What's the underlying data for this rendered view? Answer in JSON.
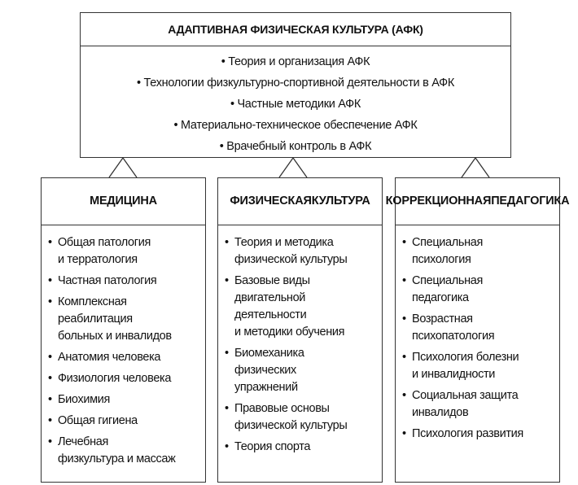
{
  "top": {
    "title": "АДАПТИВНАЯ ФИЗИЧЕСКАЯ КУЛЬТУРА (АФК)",
    "items": [
      "• Теория и организация АФК",
      "• Технологии физкультурно-спортивной деятельности в АФК",
      "• Частные методики АФК",
      "• Материально-техническое обеспечение АФК",
      "• Врачебный контроль в АФК"
    ]
  },
  "boxes": [
    {
      "title": [
        "МЕДИЦИНА"
      ],
      "items": [
        [
          "Общая патология",
          "и терратология"
        ],
        [
          "Частная патология"
        ],
        [
          "Комплексная",
          "реабилитация",
          "больных и инвалидов"
        ],
        [
          "Анатомия человека"
        ],
        [
          "Физиология человека"
        ],
        [
          "Биохимия"
        ],
        [
          "Общая гигиена"
        ],
        [
          "Лечебная",
          "физкультура и массаж"
        ]
      ]
    },
    {
      "title": [
        "ФИЗИЧЕСКАЯ",
        "КУЛЬТУРА"
      ],
      "items": [
        [
          "Теория и методика",
          "физической культуры"
        ],
        [
          "Базовые виды",
          "двигательной",
          "деятельности",
          "и методики обучения"
        ],
        [
          "Биомеханика",
          "физических",
          "упражнений"
        ],
        [
          "Правовые основы",
          "физической культуры"
        ],
        [
          "Теория спорта"
        ]
      ]
    },
    {
      "title": [
        "КОРРЕКЦИОННАЯ",
        "ПЕДАГОГИКА"
      ],
      "items": [
        [
          "Специальная",
          "психология"
        ],
        [
          "Специальная",
          "педагогика"
        ],
        [
          "Возрастная",
          "психопатология"
        ],
        [
          "Психология болезни",
          "и инвалидности"
        ],
        [
          "Социальная защита",
          "инвалидов"
        ],
        [
          "Психология развития"
        ]
      ]
    }
  ],
  "bullet": "•"
}
